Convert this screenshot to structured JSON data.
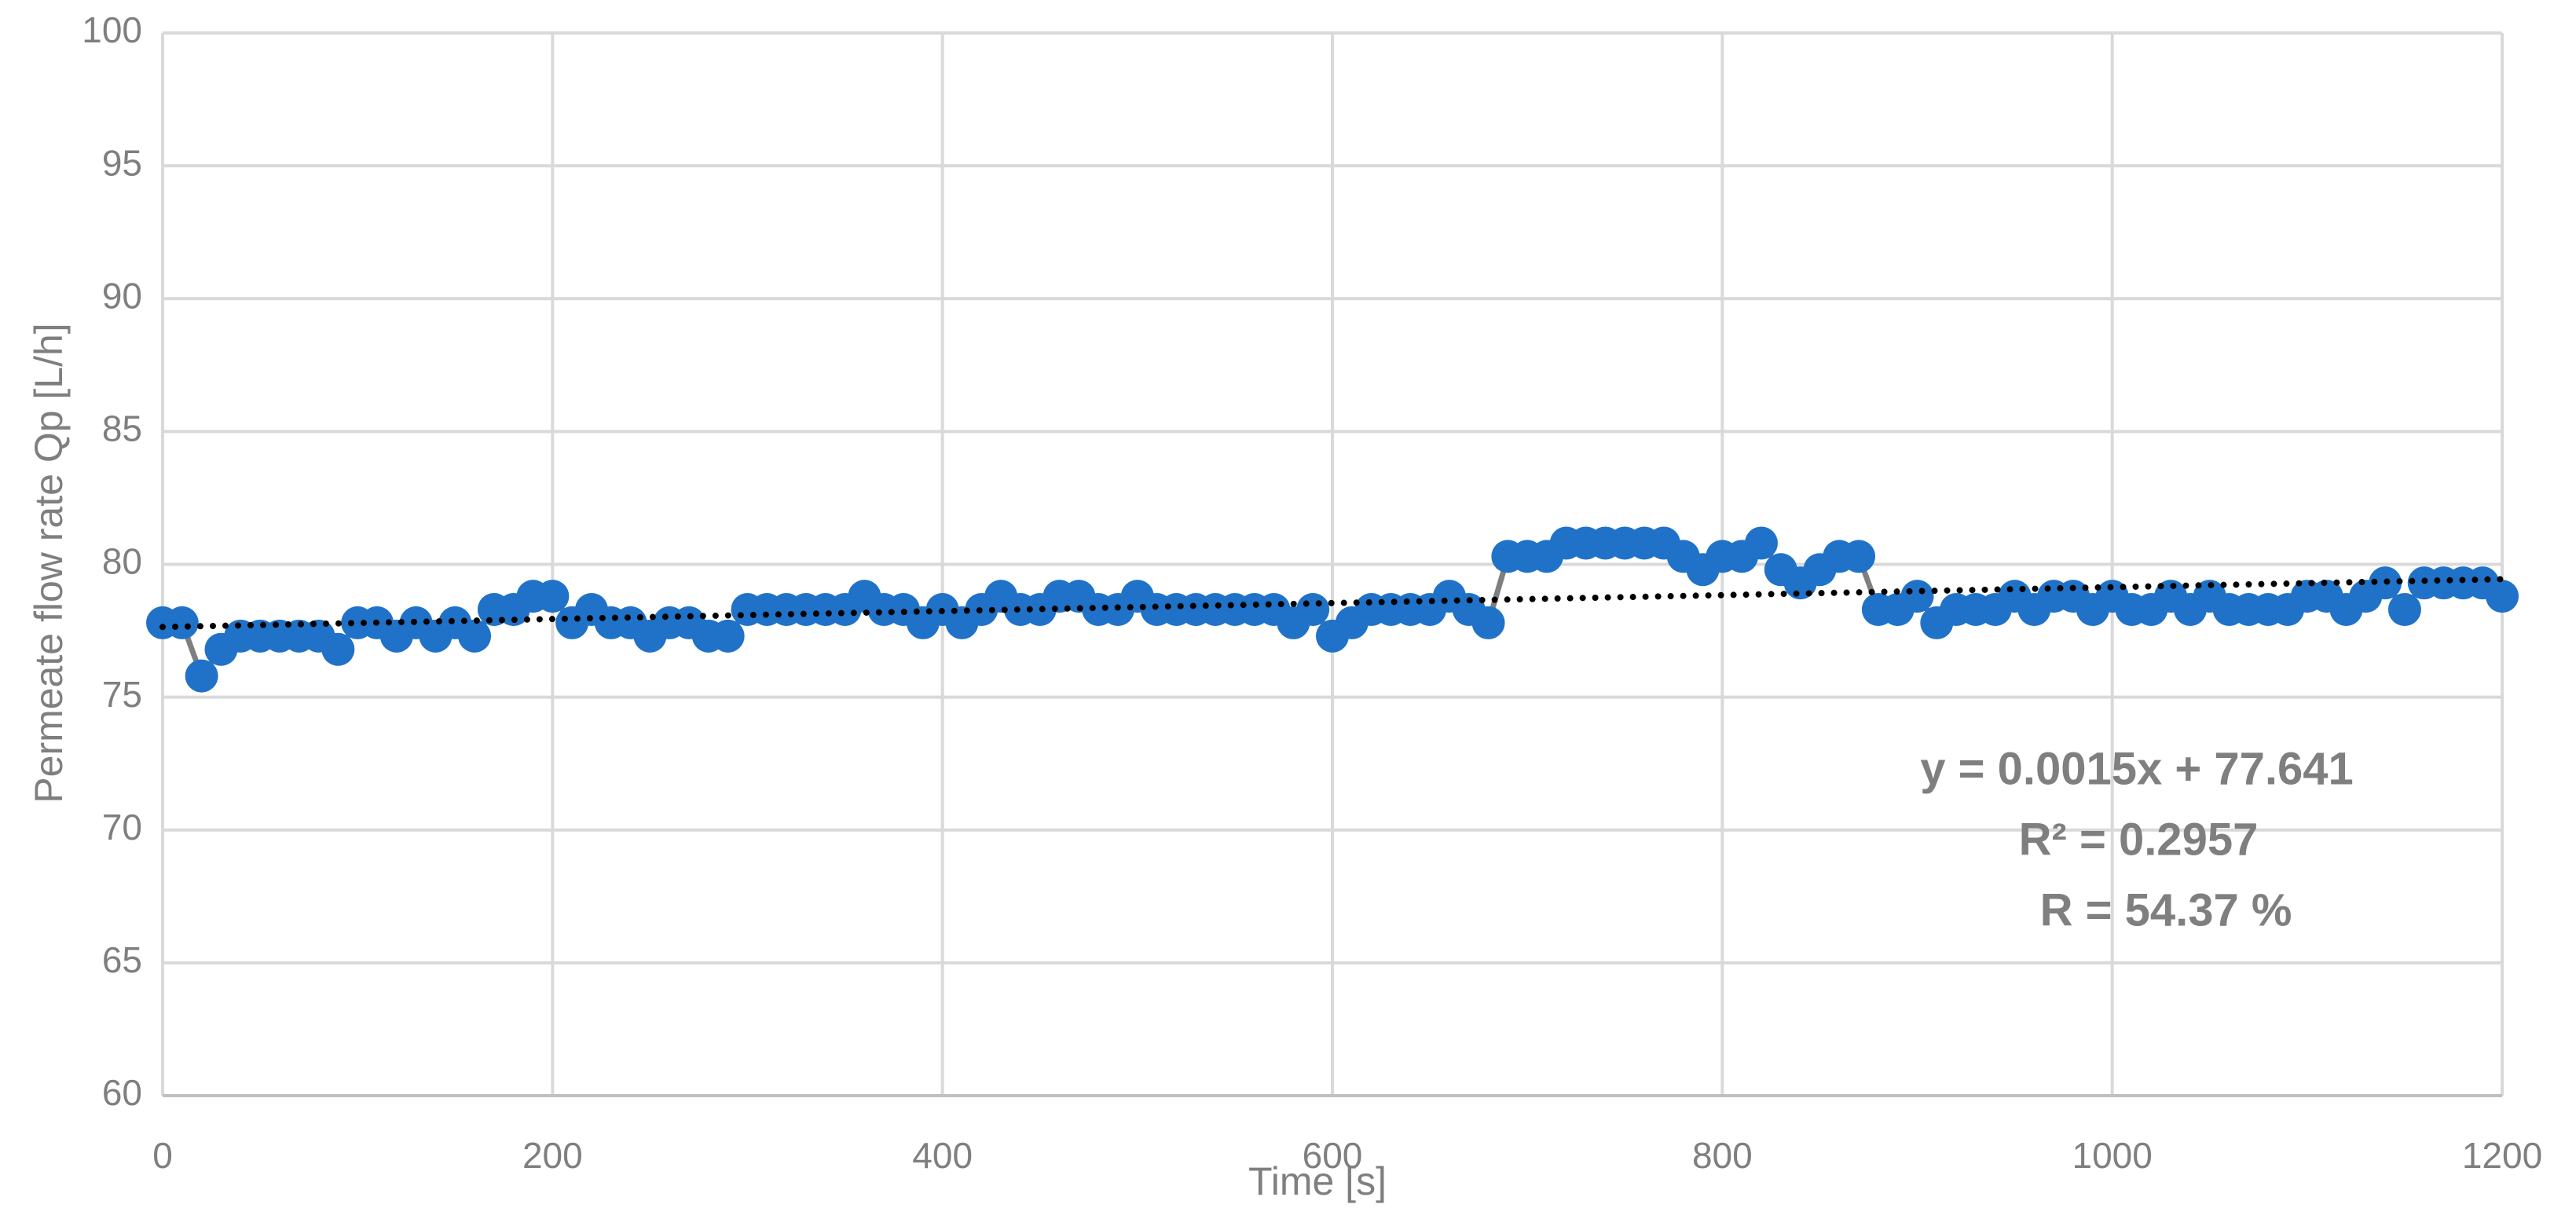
{
  "chart_data": {
    "type": "line",
    "xlabel": "Time [s]",
    "ylabel": "Permeate flow rate Qp  [L/h]",
    "annotations": [
      "y = 0.0015x + 77.641",
      "R² = 0.2957",
      "R = 54.37 %"
    ],
    "x": [
      0,
      10,
      20,
      30,
      40,
      50,
      60,
      70,
      80,
      90,
      100,
      110,
      120,
      130,
      140,
      150,
      160,
      170,
      180,
      190,
      200,
      210,
      220,
      230,
      240,
      250,
      260,
      270,
      280,
      290,
      300,
      310,
      320,
      330,
      340,
      350,
      360,
      370,
      380,
      390,
      400,
      410,
      420,
      430,
      440,
      450,
      460,
      470,
      480,
      490,
      500,
      510,
      520,
      530,
      540,
      550,
      560,
      570,
      580,
      590,
      600,
      610,
      620,
      630,
      640,
      650,
      660,
      670,
      680,
      690,
      700,
      710,
      720,
      730,
      740,
      750,
      760,
      770,
      780,
      790,
      800,
      810,
      820,
      830,
      840,
      850,
      860,
      870,
      880,
      890,
      900,
      910,
      920,
      930,
      940,
      950,
      960,
      970,
      980,
      990,
      1000,
      1010,
      1020,
      1030,
      1040,
      1050,
      1060,
      1070,
      1080,
      1090,
      1100,
      1110,
      1120,
      1130,
      1140,
      1150,
      1160,
      1170,
      1180,
      1190,
      1200
    ],
    "series": [
      {
        "color": "#1f72c8",
        "line_color": "#7f7f7f",
        "values": [
          77.8,
          77.8,
          75.8,
          76.8,
          77.3,
          77.3,
          77.3,
          77.3,
          77.3,
          76.8,
          77.8,
          77.8,
          77.3,
          77.8,
          77.3,
          77.8,
          77.3,
          78.3,
          78.3,
          78.8,
          78.8,
          77.8,
          78.3,
          77.8,
          77.8,
          77.3,
          77.8,
          77.8,
          77.3,
          77.3,
          78.3,
          78.3,
          78.3,
          78.3,
          78.3,
          78.3,
          78.8,
          78.3,
          78.3,
          77.8,
          78.3,
          77.8,
          78.3,
          78.8,
          78.3,
          78.3,
          78.8,
          78.8,
          78.3,
          78.3,
          78.8,
          78.3,
          78.3,
          78.3,
          78.3,
          78.3,
          78.3,
          78.3,
          77.8,
          78.3,
          77.3,
          77.8,
          78.3,
          78.3,
          78.3,
          78.3,
          78.8,
          78.3,
          77.8,
          80.3,
          80.3,
          80.3,
          80.8,
          80.8,
          80.8,
          80.8,
          80.8,
          80.8,
          80.3,
          79.8,
          80.3,
          80.3,
          80.8,
          79.8,
          79.3,
          79.8,
          80.3,
          80.3,
          78.3,
          78.3,
          78.8,
          77.8,
          78.3,
          78.3,
          78.3,
          78.8,
          78.3,
          78.8,
          78.8,
          78.3,
          78.8,
          78.3,
          78.3,
          78.8,
          78.3,
          78.8,
          78.3,
          78.3,
          78.3,
          78.3,
          78.8,
          78.8,
          78.3,
          78.8,
          79.3,
          78.3,
          79.3,
          79.3,
          79.3,
          79.3,
          78.8
        ]
      }
    ],
    "trendline": {
      "color": "#000000",
      "x": [
        0,
        1200
      ],
      "values": [
        77.641,
        79.441
      ]
    },
    "xlim": [
      0,
      1200
    ],
    "xticks": [
      0,
      200,
      400,
      600,
      800,
      1000,
      1200
    ],
    "ylim": [
      60,
      100
    ],
    "yticks": [
      60,
      65,
      70,
      75,
      80,
      85,
      90,
      95,
      100
    ],
    "grid": true
  }
}
